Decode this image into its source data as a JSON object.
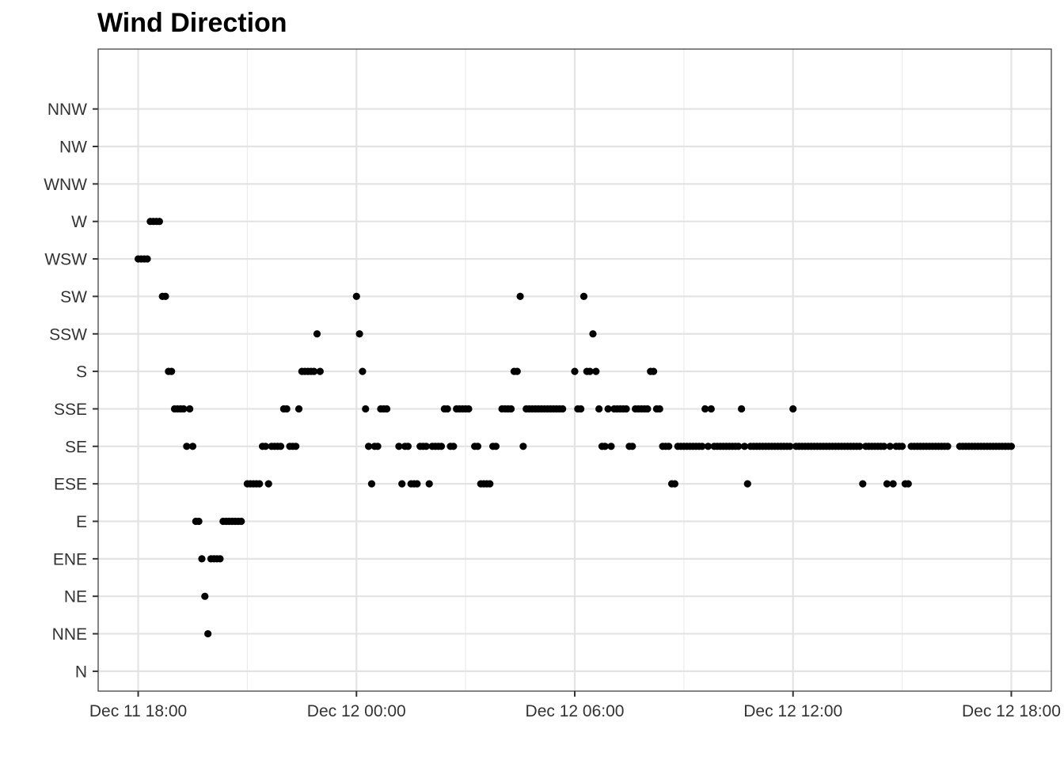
{
  "chart_data": {
    "type": "scatter",
    "title": "Wind Direction",
    "xlabel": "",
    "ylabel": "",
    "x_ticks": [
      "Dec 11 18:00",
      "Dec 12 00:00",
      "Dec 12 06:00",
      "Dec 12 12:00",
      "Dec 12 18:00"
    ],
    "xlim": [
      "Dec 11 16:54",
      "Dec 12 19:06"
    ],
    "categories": [
      "N",
      "NNE",
      "NE",
      "ENE",
      "E",
      "ESE",
      "SE",
      "SSE",
      "S",
      "SSW",
      "SW",
      "WSW",
      "W",
      "WNW",
      "NW",
      "NNW"
    ],
    "grid": true,
    "point_color": "#000000",
    "series": [
      {
        "points": [
          [
            "Dec 11 18:00",
            "WSW"
          ],
          [
            "Dec 11 18:05",
            "WSW"
          ],
          [
            "Dec 11 18:10",
            "WSW"
          ],
          [
            "Dec 11 18:15",
            "WSW"
          ],
          [
            "Dec 11 18:20",
            "W"
          ],
          [
            "Dec 11 18:25",
            "W"
          ],
          [
            "Dec 11 18:30",
            "W"
          ],
          [
            "Dec 11 18:35",
            "W"
          ],
          [
            "Dec 11 18:40",
            "SW"
          ],
          [
            "Dec 11 18:45",
            "SW"
          ],
          [
            "Dec 11 18:50",
            "S"
          ],
          [
            "Dec 11 18:55",
            "S"
          ],
          [
            "Dec 11 19:00",
            "SSE"
          ],
          [
            "Dec 11 19:05",
            "SSE"
          ],
          [
            "Dec 11 19:10",
            "SSE"
          ],
          [
            "Dec 11 19:15",
            "SSE"
          ],
          [
            "Dec 11 19:20",
            "SE"
          ],
          [
            "Dec 11 19:25",
            "SSE"
          ],
          [
            "Dec 11 19:30",
            "SE"
          ],
          [
            "Dec 11 19:35",
            "E"
          ],
          [
            "Dec 11 19:40",
            "E"
          ],
          [
            "Dec 11 19:45",
            "ENE"
          ],
          [
            "Dec 11 19:50",
            "NE"
          ],
          [
            "Dec 11 19:55",
            "NNE"
          ],
          [
            "Dec 11 20:00",
            "ENE"
          ],
          [
            "Dec 11 20:05",
            "ENE"
          ],
          [
            "Dec 11 20:10",
            "ENE"
          ],
          [
            "Dec 11 20:15",
            "ENE"
          ],
          [
            "Dec 11 20:20",
            "E"
          ],
          [
            "Dec 11 20:25",
            "E"
          ],
          [
            "Dec 11 20:30",
            "E"
          ],
          [
            "Dec 11 20:35",
            "E"
          ],
          [
            "Dec 11 20:40",
            "E"
          ],
          [
            "Dec 11 20:45",
            "E"
          ],
          [
            "Dec 11 20:50",
            "E"
          ],
          [
            "Dec 11 21:00",
            "ESE"
          ],
          [
            "Dec 11 21:05",
            "ESE"
          ],
          [
            "Dec 11 21:10",
            "ESE"
          ],
          [
            "Dec 11 21:15",
            "ESE"
          ],
          [
            "Dec 11 21:20",
            "ESE"
          ],
          [
            "Dec 11 21:25",
            "SE"
          ],
          [
            "Dec 11 21:30",
            "SE"
          ],
          [
            "Dec 11 21:35",
            "ESE"
          ],
          [
            "Dec 11 21:40",
            "SE"
          ],
          [
            "Dec 11 21:45",
            "SE"
          ],
          [
            "Dec 11 21:50",
            "SE"
          ],
          [
            "Dec 11 21:55",
            "SE"
          ],
          [
            "Dec 11 22:00",
            "SSE"
          ],
          [
            "Dec 11 22:05",
            "SSE"
          ],
          [
            "Dec 11 22:10",
            "SE"
          ],
          [
            "Dec 11 22:15",
            "SE"
          ],
          [
            "Dec 11 22:20",
            "SE"
          ],
          [
            "Dec 11 22:25",
            "SSE"
          ],
          [
            "Dec 11 22:30",
            "S"
          ],
          [
            "Dec 11 22:35",
            "S"
          ],
          [
            "Dec 11 22:40",
            "S"
          ],
          [
            "Dec 11 22:45",
            "S"
          ],
          [
            "Dec 11 22:50",
            "S"
          ],
          [
            "Dec 11 22:55",
            "SSW"
          ],
          [
            "Dec 11 23:00",
            "S"
          ],
          [
            "Dec 12 00:00",
            "SW"
          ],
          [
            "Dec 12 00:05",
            "SSW"
          ],
          [
            "Dec 12 00:10",
            "S"
          ],
          [
            "Dec 12 00:15",
            "SSE"
          ],
          [
            "Dec 12 00:20",
            "SE"
          ],
          [
            "Dec 12 00:25",
            "ESE"
          ],
          [
            "Dec 12 00:30",
            "SE"
          ],
          [
            "Dec 12 00:35",
            "SE"
          ],
          [
            "Dec 12 00:40",
            "SSE"
          ],
          [
            "Dec 12 00:45",
            "SSE"
          ],
          [
            "Dec 12 00:50",
            "SSE"
          ],
          [
            "Dec 12 01:10",
            "SE"
          ],
          [
            "Dec 12 01:15",
            "ESE"
          ],
          [
            "Dec 12 01:20",
            "SE"
          ],
          [
            "Dec 12 01:25",
            "SE"
          ],
          [
            "Dec 12 01:30",
            "ESE"
          ],
          [
            "Dec 12 01:35",
            "ESE"
          ],
          [
            "Dec 12 01:40",
            "ESE"
          ],
          [
            "Dec 12 01:45",
            "SE"
          ],
          [
            "Dec 12 01:50",
            "SE"
          ],
          [
            "Dec 12 01:55",
            "SE"
          ],
          [
            "Dec 12 02:00",
            "ESE"
          ],
          [
            "Dec 12 02:05",
            "SE"
          ],
          [
            "Dec 12 02:10",
            "SE"
          ],
          [
            "Dec 12 02:15",
            "SE"
          ],
          [
            "Dec 12 02:20",
            "SE"
          ],
          [
            "Dec 12 02:25",
            "SSE"
          ],
          [
            "Dec 12 02:30",
            "SSE"
          ],
          [
            "Dec 12 02:35",
            "SE"
          ],
          [
            "Dec 12 02:40",
            "SE"
          ],
          [
            "Dec 12 02:45",
            "SSE"
          ],
          [
            "Dec 12 02:50",
            "SSE"
          ],
          [
            "Dec 12 02:55",
            "SSE"
          ],
          [
            "Dec 12 03:00",
            "SSE"
          ],
          [
            "Dec 12 03:05",
            "SSE"
          ],
          [
            "Dec 12 03:15",
            "SE"
          ],
          [
            "Dec 12 03:20",
            "SE"
          ],
          [
            "Dec 12 03:25",
            "ESE"
          ],
          [
            "Dec 12 03:30",
            "ESE"
          ],
          [
            "Dec 12 03:35",
            "ESE"
          ],
          [
            "Dec 12 03:40",
            "ESE"
          ],
          [
            "Dec 12 03:45",
            "SE"
          ],
          [
            "Dec 12 03:50",
            "SE"
          ],
          [
            "Dec 12 04:00",
            "SSE"
          ],
          [
            "Dec 12 04:05",
            "SSE"
          ],
          [
            "Dec 12 04:10",
            "SSE"
          ],
          [
            "Dec 12 04:15",
            "SSE"
          ],
          [
            "Dec 12 04:20",
            "S"
          ],
          [
            "Dec 12 04:25",
            "S"
          ],
          [
            "Dec 12 04:30",
            "SW"
          ],
          [
            "Dec 12 04:35",
            "SE"
          ],
          [
            "Dec 12 04:40",
            "SSE"
          ],
          [
            "Dec 12 04:45",
            "SSE"
          ],
          [
            "Dec 12 04:50",
            "SSE"
          ],
          [
            "Dec 12 04:55",
            "SSE"
          ],
          [
            "Dec 12 05:00",
            "SSE"
          ],
          [
            "Dec 12 05:05",
            "SSE"
          ],
          [
            "Dec 12 05:10",
            "SSE"
          ],
          [
            "Dec 12 05:15",
            "SSE"
          ],
          [
            "Dec 12 05:20",
            "SSE"
          ],
          [
            "Dec 12 05:25",
            "SSE"
          ],
          [
            "Dec 12 05:30",
            "SSE"
          ],
          [
            "Dec 12 05:35",
            "SSE"
          ],
          [
            "Dec 12 05:40",
            "SSE"
          ],
          [
            "Dec 12 06:00",
            "S"
          ],
          [
            "Dec 12 06:05",
            "SSE"
          ],
          [
            "Dec 12 06:10",
            "SSE"
          ],
          [
            "Dec 12 06:15",
            "SW"
          ],
          [
            "Dec 12 06:20",
            "S"
          ],
          [
            "Dec 12 06:25",
            "S"
          ],
          [
            "Dec 12 06:30",
            "SSW"
          ],
          [
            "Dec 12 06:35",
            "S"
          ],
          [
            "Dec 12 06:40",
            "SSE"
          ],
          [
            "Dec 12 06:45",
            "SE"
          ],
          [
            "Dec 12 06:50",
            "SE"
          ],
          [
            "Dec 12 06:55",
            "SSE"
          ],
          [
            "Dec 12 07:00",
            "SE"
          ],
          [
            "Dec 12 07:05",
            "SSE"
          ],
          [
            "Dec 12 07:10",
            "SSE"
          ],
          [
            "Dec 12 07:15",
            "SSE"
          ],
          [
            "Dec 12 07:20",
            "SSE"
          ],
          [
            "Dec 12 07:25",
            "SSE"
          ],
          [
            "Dec 12 07:30",
            "SE"
          ],
          [
            "Dec 12 07:35",
            "SE"
          ],
          [
            "Dec 12 07:40",
            "SSE"
          ],
          [
            "Dec 12 07:45",
            "SSE"
          ],
          [
            "Dec 12 07:50",
            "SSE"
          ],
          [
            "Dec 12 07:55",
            "SSE"
          ],
          [
            "Dec 12 08:00",
            "SSE"
          ],
          [
            "Dec 12 08:05",
            "S"
          ],
          [
            "Dec 12 08:10",
            "S"
          ],
          [
            "Dec 12 08:15",
            "SSE"
          ],
          [
            "Dec 12 08:20",
            "SSE"
          ],
          [
            "Dec 12 08:25",
            "SE"
          ],
          [
            "Dec 12 08:30",
            "SE"
          ],
          [
            "Dec 12 08:35",
            "SE"
          ],
          [
            "Dec 12 08:40",
            "ESE"
          ],
          [
            "Dec 12 08:45",
            "ESE"
          ],
          [
            "Dec 12 08:50",
            "SE"
          ],
          [
            "Dec 12 08:55",
            "SE"
          ],
          [
            "Dec 12 09:00",
            "SE"
          ],
          [
            "Dec 12 09:05",
            "SE"
          ],
          [
            "Dec 12 09:10",
            "SE"
          ],
          [
            "Dec 12 09:15",
            "SE"
          ],
          [
            "Dec 12 09:20",
            "SE"
          ],
          [
            "Dec 12 09:25",
            "SE"
          ],
          [
            "Dec 12 09:30",
            "SE"
          ],
          [
            "Dec 12 09:35",
            "SSE"
          ],
          [
            "Dec 12 09:40",
            "SE"
          ],
          [
            "Dec 12 09:45",
            "SSE"
          ],
          [
            "Dec 12 09:50",
            "SE"
          ],
          [
            "Dec 12 09:55",
            "SE"
          ],
          [
            "Dec 12 10:00",
            "SE"
          ],
          [
            "Dec 12 10:05",
            "SE"
          ],
          [
            "Dec 12 10:10",
            "SE"
          ],
          [
            "Dec 12 10:15",
            "SE"
          ],
          [
            "Dec 12 10:20",
            "SE"
          ],
          [
            "Dec 12 10:25",
            "SE"
          ],
          [
            "Dec 12 10:30",
            "SE"
          ],
          [
            "Dec 12 10:35",
            "SSE"
          ],
          [
            "Dec 12 10:40",
            "SE"
          ],
          [
            "Dec 12 10:45",
            "ESE"
          ],
          [
            "Dec 12 10:50",
            "SE"
          ],
          [
            "Dec 12 10:55",
            "SE"
          ],
          [
            "Dec 12 11:00",
            "SE"
          ],
          [
            "Dec 12 11:05",
            "SE"
          ],
          [
            "Dec 12 11:10",
            "SE"
          ],
          [
            "Dec 12 11:15",
            "SE"
          ],
          [
            "Dec 12 11:20",
            "SE"
          ],
          [
            "Dec 12 11:25",
            "SE"
          ],
          [
            "Dec 12 11:30",
            "SE"
          ],
          [
            "Dec 12 11:35",
            "SE"
          ],
          [
            "Dec 12 11:40",
            "SE"
          ],
          [
            "Dec 12 11:45",
            "SE"
          ],
          [
            "Dec 12 11:50",
            "SE"
          ],
          [
            "Dec 12 11:55",
            "SE"
          ],
          [
            "Dec 12 12:00",
            "SSE"
          ],
          [
            "Dec 12 12:05",
            "SE"
          ],
          [
            "Dec 12 12:10",
            "SE"
          ],
          [
            "Dec 12 12:15",
            "SE"
          ],
          [
            "Dec 12 12:20",
            "SE"
          ],
          [
            "Dec 12 12:25",
            "SE"
          ],
          [
            "Dec 12 12:30",
            "SE"
          ],
          [
            "Dec 12 12:35",
            "SE"
          ],
          [
            "Dec 12 12:40",
            "SE"
          ],
          [
            "Dec 12 12:45",
            "SE"
          ],
          [
            "Dec 12 12:50",
            "SE"
          ],
          [
            "Dec 12 12:55",
            "SE"
          ],
          [
            "Dec 12 13:00",
            "SE"
          ],
          [
            "Dec 12 13:05",
            "SE"
          ],
          [
            "Dec 12 13:10",
            "SE"
          ],
          [
            "Dec 12 13:15",
            "SE"
          ],
          [
            "Dec 12 13:20",
            "SE"
          ],
          [
            "Dec 12 13:25",
            "SE"
          ],
          [
            "Dec 12 13:30",
            "SE"
          ],
          [
            "Dec 12 13:35",
            "SE"
          ],
          [
            "Dec 12 13:40",
            "SE"
          ],
          [
            "Dec 12 13:45",
            "SE"
          ],
          [
            "Dec 12 13:50",
            "SE"
          ],
          [
            "Dec 12 13:55",
            "ESE"
          ],
          [
            "Dec 12 14:00",
            "SE"
          ],
          [
            "Dec 12 14:05",
            "SE"
          ],
          [
            "Dec 12 14:10",
            "SE"
          ],
          [
            "Dec 12 14:15",
            "SE"
          ],
          [
            "Dec 12 14:20",
            "SE"
          ],
          [
            "Dec 12 14:25",
            "SE"
          ],
          [
            "Dec 12 14:30",
            "SE"
          ],
          [
            "Dec 12 14:35",
            "ESE"
          ],
          [
            "Dec 12 14:40",
            "SE"
          ],
          [
            "Dec 12 14:45",
            "ESE"
          ],
          [
            "Dec 12 14:50",
            "SE"
          ],
          [
            "Dec 12 14:55",
            "SE"
          ],
          [
            "Dec 12 15:00",
            "SE"
          ],
          [
            "Dec 12 15:05",
            "ESE"
          ],
          [
            "Dec 12 15:10",
            "ESE"
          ],
          [
            "Dec 12 15:15",
            "SE"
          ],
          [
            "Dec 12 15:20",
            "SE"
          ],
          [
            "Dec 12 15:25",
            "SE"
          ],
          [
            "Dec 12 15:30",
            "SE"
          ],
          [
            "Dec 12 15:35",
            "SE"
          ],
          [
            "Dec 12 15:40",
            "SE"
          ],
          [
            "Dec 12 15:45",
            "SE"
          ],
          [
            "Dec 12 15:50",
            "SE"
          ],
          [
            "Dec 12 15:55",
            "SE"
          ],
          [
            "Dec 12 16:00",
            "SE"
          ],
          [
            "Dec 12 16:05",
            "SE"
          ],
          [
            "Dec 12 16:10",
            "SE"
          ],
          [
            "Dec 12 16:15",
            "SE"
          ],
          [
            "Dec 12 16:35",
            "SE"
          ],
          [
            "Dec 12 16:40",
            "SE"
          ],
          [
            "Dec 12 16:45",
            "SE"
          ],
          [
            "Dec 12 16:50",
            "SE"
          ],
          [
            "Dec 12 16:55",
            "SE"
          ],
          [
            "Dec 12 17:00",
            "SE"
          ],
          [
            "Dec 12 17:05",
            "SE"
          ],
          [
            "Dec 12 17:10",
            "SE"
          ],
          [
            "Dec 12 17:15",
            "SE"
          ],
          [
            "Dec 12 17:20",
            "SE"
          ],
          [
            "Dec 12 17:25",
            "SE"
          ],
          [
            "Dec 12 17:30",
            "SE"
          ],
          [
            "Dec 12 17:35",
            "SE"
          ],
          [
            "Dec 12 17:40",
            "SE"
          ],
          [
            "Dec 12 17:45",
            "SE"
          ],
          [
            "Dec 12 17:50",
            "SE"
          ],
          [
            "Dec 12 17:55",
            "SE"
          ],
          [
            "Dec 12 18:00",
            "SE"
          ]
        ]
      }
    ]
  }
}
